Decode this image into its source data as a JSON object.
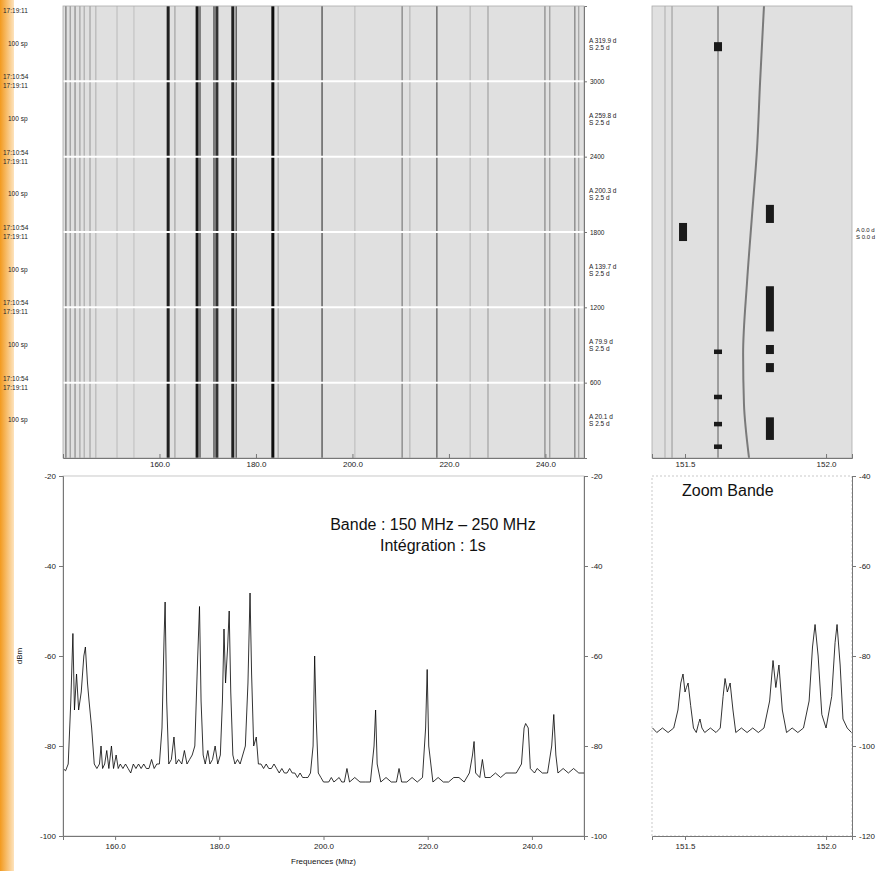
{
  "chart_data": [
    {
      "type": "waterfall",
      "xlim": [
        140,
        248
      ],
      "xticks": [
        {
          "value": 160,
          "label": "160.0"
        },
        {
          "value": 180,
          "label": "180.0"
        },
        {
          "value": 200,
          "label": "200.0"
        },
        {
          "value": 220,
          "label": "220.0"
        },
        {
          "value": 240,
          "label": "240.0"
        }
      ],
      "ylim": [
        0,
        3600
      ],
      "yticks": [
        600,
        1200,
        1800,
        2400,
        3000
      ],
      "grid": true,
      "level_range": [
        -90,
        -45
      ],
      "channels": [
        {
          "x": 140.6,
          "level": -70
        },
        {
          "x": 141.5,
          "level": -78
        },
        {
          "x": 142.5,
          "level": -75
        },
        {
          "x": 143.5,
          "level": -80
        },
        {
          "x": 144.4,
          "level": -82
        },
        {
          "x": 145.6,
          "level": -80
        },
        {
          "x": 146.8,
          "level": -84
        },
        {
          "x": 151.2,
          "level": -86
        },
        {
          "x": 154.7,
          "level": -87
        },
        {
          "x": 161.8,
          "level": -50
        },
        {
          "x": 163.2,
          "level": -80
        },
        {
          "x": 167.8,
          "level": -48
        },
        {
          "x": 168.4,
          "level": -60
        },
        {
          "x": 171.3,
          "level": -58
        },
        {
          "x": 171.9,
          "level": -54
        },
        {
          "x": 175.2,
          "level": -50
        },
        {
          "x": 175.9,
          "level": -60
        },
        {
          "x": 183.5,
          "level": -46
        },
        {
          "x": 184.6,
          "level": -80
        },
        {
          "x": 193.7,
          "level": -60
        },
        {
          "x": 200.5,
          "level": -86
        },
        {
          "x": 210.3,
          "level": -72
        },
        {
          "x": 211.9,
          "level": -84
        },
        {
          "x": 217.5,
          "level": -64
        },
        {
          "x": 224.4,
          "level": -84
        },
        {
          "x": 228.1,
          "level": -80
        },
        {
          "x": 239.9,
          "level": -74
        },
        {
          "x": 240.9,
          "level": -78
        },
        {
          "x": 246.1,
          "level": -72
        },
        {
          "x": 246.9,
          "level": -80
        }
      ],
      "bands": [
        {
          "end": "17:19:11",
          "count": "100 sp",
          "start": "17:10:54",
          "A": "A 319.9 d",
          "S": "S 2.5 d"
        },
        {
          "end": "17:19:11",
          "count": "100 sp",
          "start": "17:10:54",
          "A": "A 259.8 d",
          "S": "S 2.5 d"
        },
        {
          "end": "17:19:11",
          "count": "100 sp",
          "start": "17:10:54",
          "A": "A 200.3 d",
          "S": "S 2.5 d"
        },
        {
          "end": "17:19:11",
          "count": "100 sp",
          "start": "17:10:54",
          "A": "A 139.7 d",
          "S": "S 2.5 d"
        },
        {
          "end": "17:19:11",
          "count": "100 sp",
          "start": "17:10:54",
          "A": "A 79.9 d",
          "S": "S 2.5 d"
        },
        {
          "end": "17:19:11",
          "count": "100 sp",
          "A": "A 20.1 d",
          "S": "S 2.5 d"
        }
      ]
    },
    {
      "type": "waterfall",
      "xlim": [
        151.383,
        152.092
      ],
      "xticks": [
        151.5,
        {
          "value": 152,
          "label": "152.0"
        }
      ],
      "ylim": [
        0,
        100
      ],
      "tick_labels": "x",
      "level_range": [
        -90,
        -45
      ],
      "channels": [
        {
          "x": 151.429,
          "level": -84
        },
        {
          "x": 151.454,
          "level": -80
        },
        {
          "x": 151.617,
          "level": -70
        }
      ],
      "drift": {
        "x": [
          151.78,
          151.766,
          151.755,
          151.738,
          151.72,
          151.706,
          151.709,
          151.727
        ],
        "y": [
          100,
          83,
          68,
          54,
          39,
          23,
          12,
          0
        ]
      },
      "bursts": [
        {
          "x": 151.493,
          "y0": 48,
          "y1": 52
        },
        {
          "x": 151.801,
          "y0": 52,
          "y1": 56
        },
        {
          "x": 151.801,
          "y0": 28,
          "y1": 38
        },
        {
          "x": 151.801,
          "y0": 23,
          "y1": 25
        },
        {
          "x": 151.801,
          "y0": 19,
          "y1": 21
        },
        {
          "x": 151.801,
          "y0": 4,
          "y1": 9
        },
        {
          "x": 151.617,
          "y0": 90,
          "y1": 92
        },
        {
          "x": 151.617,
          "y0": 23,
          "y1": 24
        },
        {
          "x": 151.617,
          "y0": 13,
          "y1": 14
        },
        {
          "x": 151.617,
          "y0": 7,
          "y1": 8
        },
        {
          "x": 151.617,
          "y0": 2,
          "y1": 3
        }
      ],
      "annotations": [
        "A 0.0 d",
        "S 0.0 d"
      ]
    },
    {
      "type": "line",
      "annotations": [
        "Bande : 150 MHz – 250 MHz",
        "Intégration : 1s"
      ],
      "xlabel": "Frequences (Mhz)",
      "ylabel": "dBm",
      "xlim": [
        150,
        250
      ],
      "xticks": [
        {
          "value": 160,
          "label": "160.0"
        },
        {
          "value": 180,
          "label": "180.0"
        },
        {
          "value": 200,
          "label": "200.0"
        },
        {
          "value": 220,
          "label": "220.0"
        },
        {
          "value": 240,
          "label": "240.0"
        }
      ],
      "ylim": [
        -100,
        -20
      ],
      "yticks": [
        -20,
        -40,
        -60,
        -80,
        -100
      ],
      "x": [
        150.0,
        150.5,
        151.0,
        151.5,
        151.9,
        152.2,
        152.6,
        153.0,
        153.5,
        154.0,
        154.3,
        154.7,
        155.0,
        155.5,
        156.0,
        156.5,
        157.0,
        157.3,
        157.6,
        158.0,
        158.4,
        158.8,
        159.3,
        159.7,
        160.2,
        160.6,
        161.0,
        161.5,
        162.0,
        162.5,
        163.0,
        163.5,
        164.0,
        164.5,
        165.0,
        165.5,
        166.0,
        166.5,
        167.0,
        167.5,
        168.0,
        168.5,
        169.0,
        169.4,
        169.6,
        169.9,
        170.3,
        170.8,
        171.3,
        171.7,
        172.2,
        172.8,
        173.3,
        173.8,
        174.3,
        174.8,
        175.3,
        175.8,
        176.2,
        176.5,
        176.9,
        177.3,
        177.8,
        178.2,
        178.7,
        179.2,
        179.7,
        180.2,
        180.6,
        180.9,
        181.2,
        181.6,
        181.9,
        182.2,
        182.6,
        183.0,
        183.5,
        184.0,
        184.5,
        185.0,
        185.5,
        185.9,
        186.2,
        186.6,
        187.1,
        187.5,
        188.0,
        188.5,
        189.0,
        189.5,
        190.0,
        190.5,
        191.0,
        191.5,
        192.0,
        192.5,
        193.0,
        193.5,
        194.0,
        194.5,
        195.0,
        195.5,
        196.0,
        196.5,
        197.0,
        197.5,
        198.0,
        198.3,
        198.6,
        199.0,
        199.5,
        200.0,
        201.0,
        201.5,
        202.0,
        203.0,
        203.5,
        204.0,
        204.5,
        205.0,
        206.0,
        207.0,
        208.0,
        209.0,
        209.7,
        210.0,
        210.3,
        211.0,
        212.0,
        213.0,
        214.0,
        214.5,
        215.0,
        216.0,
        217.0,
        218.0,
        219.0,
        219.6,
        219.9,
        220.2,
        221.0,
        222.0,
        223.0,
        224.0,
        225.0,
        226.0,
        227.0,
        228.0,
        228.6,
        228.9,
        229.2,
        230.0,
        230.5,
        231.0,
        232.0,
        233.0,
        234.0,
        235.0,
        236.0,
        237.0,
        238.0,
        238.5,
        238.8,
        239.3,
        239.7,
        240.5,
        241.0,
        242.0,
        243.0,
        243.8,
        244.2,
        244.6,
        245.0,
        246.0,
        247.0,
        248.0,
        249.0,
        250.0
      ],
      "series": [
        {
          "color": "#000000",
          "values": [
            -85,
            -85.5,
            -84,
            -70,
            -55,
            -72,
            -64,
            -72,
            -68,
            -60,
            -58,
            -66,
            -70,
            -76,
            -84,
            -85,
            -84,
            -80,
            -85,
            -84,
            -81,
            -85,
            -80,
            -85,
            -82,
            -85,
            -84,
            -85,
            -84,
            -85,
            -86,
            -84,
            -85,
            -84,
            -85,
            -84,
            -85,
            -85,
            -83,
            -85,
            -84,
            -84,
            -76,
            -56,
            -48,
            -70,
            -84,
            -83,
            -78,
            -84,
            -83,
            -84,
            -81,
            -84,
            -83,
            -82,
            -80,
            -62,
            -49,
            -70,
            -82,
            -84,
            -81,
            -84,
            -83,
            -80,
            -84,
            -82,
            -70,
            -54,
            -66,
            -58,
            -50,
            -68,
            -82,
            -84,
            -83,
            -84,
            -82,
            -80,
            -66,
            -46,
            -64,
            -80,
            -78,
            -84,
            -84,
            -85,
            -84,
            -85,
            -85,
            -84,
            -85,
            -86,
            -85,
            -86,
            -86,
            -85,
            -86,
            -86,
            -87,
            -86,
            -87,
            -87,
            -87,
            -86,
            -80,
            -60,
            -74,
            -86,
            -87,
            -88,
            -88,
            -87,
            -88,
            -87,
            -88,
            -88,
            -85,
            -88,
            -87,
            -88,
            -88,
            -88,
            -80,
            -72,
            -84,
            -88,
            -87,
            -88,
            -88,
            -85,
            -88,
            -88,
            -87,
            -88,
            -87,
            -76,
            -63,
            -80,
            -88,
            -87,
            -88,
            -88,
            -87,
            -87,
            -88,
            -86,
            -82,
            -79,
            -86,
            -87,
            -83,
            -87,
            -87,
            -86,
            -87,
            -86,
            -86,
            -86,
            -84,
            -76,
            -75,
            -76,
            -85,
            -86,
            -85,
            -86,
            -86,
            -80,
            -73,
            -82,
            -86,
            -85,
            -86,
            -85,
            -86,
            -86
          ]
        }
      ]
    },
    {
      "type": "line",
      "title": "Zoom Bande",
      "xlim": [
        151.383,
        152.092
      ],
      "xticks": [
        151.5,
        {
          "value": 152,
          "label": "152.0"
        }
      ],
      "ylim": [
        -120,
        -40
      ],
      "yticks": [
        -40,
        -60,
        -80,
        -100,
        -120
      ],
      "x": [
        151.385,
        151.4,
        151.42,
        151.44,
        151.46,
        151.475,
        151.485,
        151.493,
        151.5,
        151.505,
        151.511,
        151.52,
        151.53,
        151.54,
        151.548,
        151.553,
        151.56,
        151.57,
        151.59,
        151.61,
        151.625,
        151.635,
        151.642,
        151.65,
        151.66,
        151.67,
        151.68,
        151.7,
        151.72,
        151.74,
        151.76,
        151.78,
        151.8,
        151.812,
        151.822,
        151.833,
        151.845,
        151.86,
        151.88,
        151.9,
        151.92,
        151.94,
        151.952,
        151.961,
        151.972,
        151.985,
        152.0,
        152.02,
        152.032,
        152.039,
        152.05,
        152.06,
        152.075,
        152.09
      ],
      "series": [
        {
          "color": "#000000",
          "values": [
            -96,
            -97,
            -96,
            -97,
            -96,
            -92,
            -86,
            -84,
            -88,
            -87,
            -86,
            -91,
            -96,
            -97,
            -95,
            -94,
            -96,
            -97,
            -96,
            -97,
            -96,
            -89,
            -85,
            -88,
            -86,
            -92,
            -97,
            -96,
            -97,
            -96,
            -97,
            -96,
            -90,
            -81,
            -87,
            -82,
            -92,
            -97,
            -96,
            -97,
            -96,
            -90,
            -78,
            -73,
            -80,
            -93,
            -96,
            -89,
            -77,
            -73,
            -82,
            -94,
            -96,
            -97
          ]
        }
      ]
    }
  ]
}
